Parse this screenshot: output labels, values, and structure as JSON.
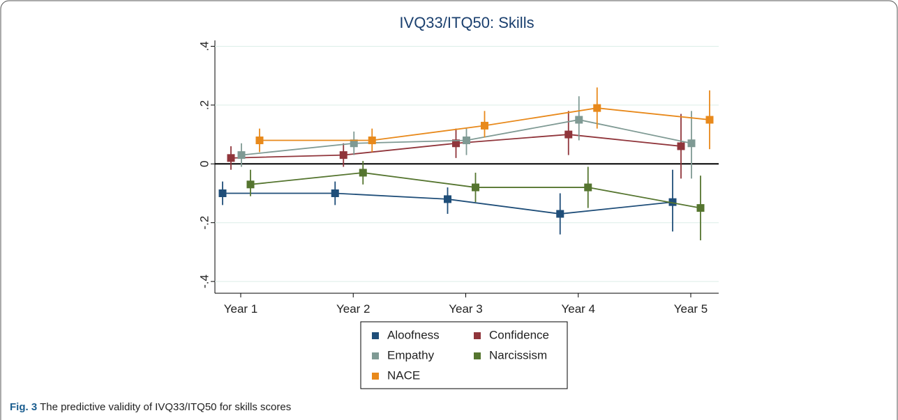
{
  "chart_data": {
    "type": "line",
    "title": "IVQ33/ITQ50: Skills",
    "categories": [
      "Year 1",
      "Year 2",
      "Year 3",
      "Year 4",
      "Year 5"
    ],
    "series": [
      {
        "name": "Aloofness",
        "color": "#1f4e79",
        "values": [
          -0.1,
          -0.1,
          -0.12,
          -0.17,
          -0.13
        ],
        "lower": [
          -0.14,
          -0.14,
          -0.17,
          -0.24,
          -0.23
        ],
        "upper": [
          -0.06,
          -0.06,
          -0.08,
          -0.1,
          -0.02
        ]
      },
      {
        "name": "Confidence",
        "color": "#90353b",
        "values": [
          0.02,
          0.03,
          0.07,
          0.1,
          0.06
        ],
        "lower": [
          -0.02,
          -0.01,
          0.02,
          0.03,
          -0.05
        ],
        "upper": [
          0.06,
          0.07,
          0.12,
          0.18,
          0.17
        ]
      },
      {
        "name": "Empathy",
        "color": "#7f9a94",
        "values": [
          0.03,
          0.07,
          0.08,
          0.15,
          0.07
        ],
        "lower": [
          -0.01,
          0.03,
          0.03,
          0.08,
          -0.05
        ],
        "upper": [
          0.07,
          0.11,
          0.12,
          0.23,
          0.18
        ]
      },
      {
        "name": "Narcissism",
        "color": "#55752f",
        "values": [
          -0.07,
          -0.03,
          -0.08,
          -0.08,
          -0.15
        ],
        "lower": [
          -0.11,
          -0.07,
          -0.13,
          -0.15,
          -0.26
        ],
        "upper": [
          -0.02,
          0.01,
          -0.03,
          -0.01,
          -0.04
        ]
      },
      {
        "name": "NACE",
        "color": "#e8891b",
        "values": [
          0.08,
          0.08,
          0.13,
          0.19,
          0.15
        ],
        "lower": [
          0.04,
          0.04,
          0.09,
          0.12,
          0.05
        ],
        "upper": [
          0.12,
          0.12,
          0.18,
          0.26,
          0.25
        ]
      }
    ],
    "ylim": [
      -0.44,
      0.42
    ],
    "yticks": [
      {
        "value": -0.4,
        "label": "-.4"
      },
      {
        "value": -0.2,
        "label": "-.2"
      },
      0,
      {
        "value": 0.2,
        "label": ".2"
      },
      {
        "value": 0.4,
        "label": ".4"
      }
    ],
    "grid": true
  },
  "caption": {
    "label": "Fig. 3",
    "text": "The predictive validity of IVQ33/ITQ50 for skills scores"
  }
}
